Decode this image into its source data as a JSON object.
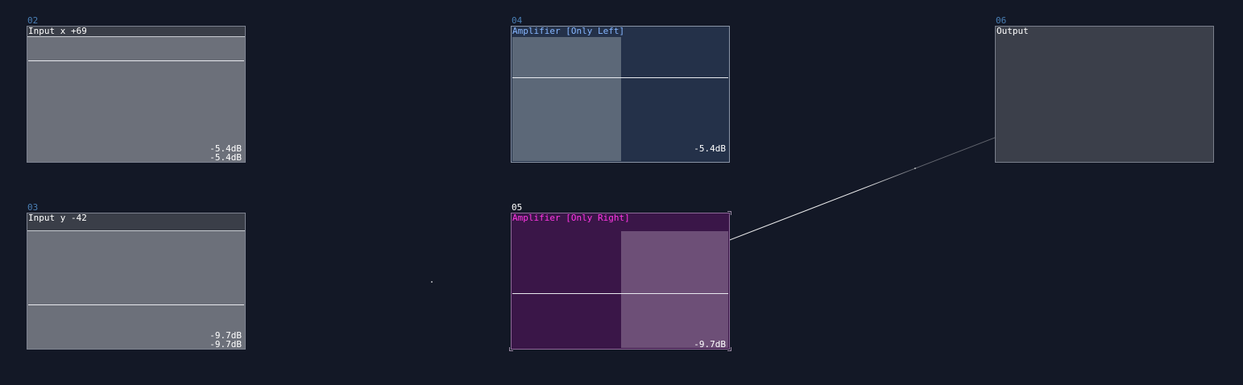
{
  "nodes": {
    "input_x": {
      "id": "02",
      "title": "Input x +69",
      "meter_left": "-5.4dB",
      "meter_right": "-5.4dB"
    },
    "amp_left": {
      "id": "04",
      "title": "Amplifier [Only Left]",
      "meter": "-5.4dB"
    },
    "output": {
      "id": "06",
      "title": "Output"
    },
    "input_y": {
      "id": "03",
      "title": "Input y -42",
      "meter_left": "-9.7dB",
      "meter_right": "-9.7dB"
    },
    "amp_right": {
      "id": "05",
      "title": "Amplifier [Only Right]",
      "meter": "-9.7dB"
    }
  },
  "colors": {
    "background": "#131826",
    "amp_left_title": "#86b6ff",
    "amp_right_title": "#ff36e4",
    "node_id": "#4a7fb5",
    "wire": "#ffffff"
  }
}
